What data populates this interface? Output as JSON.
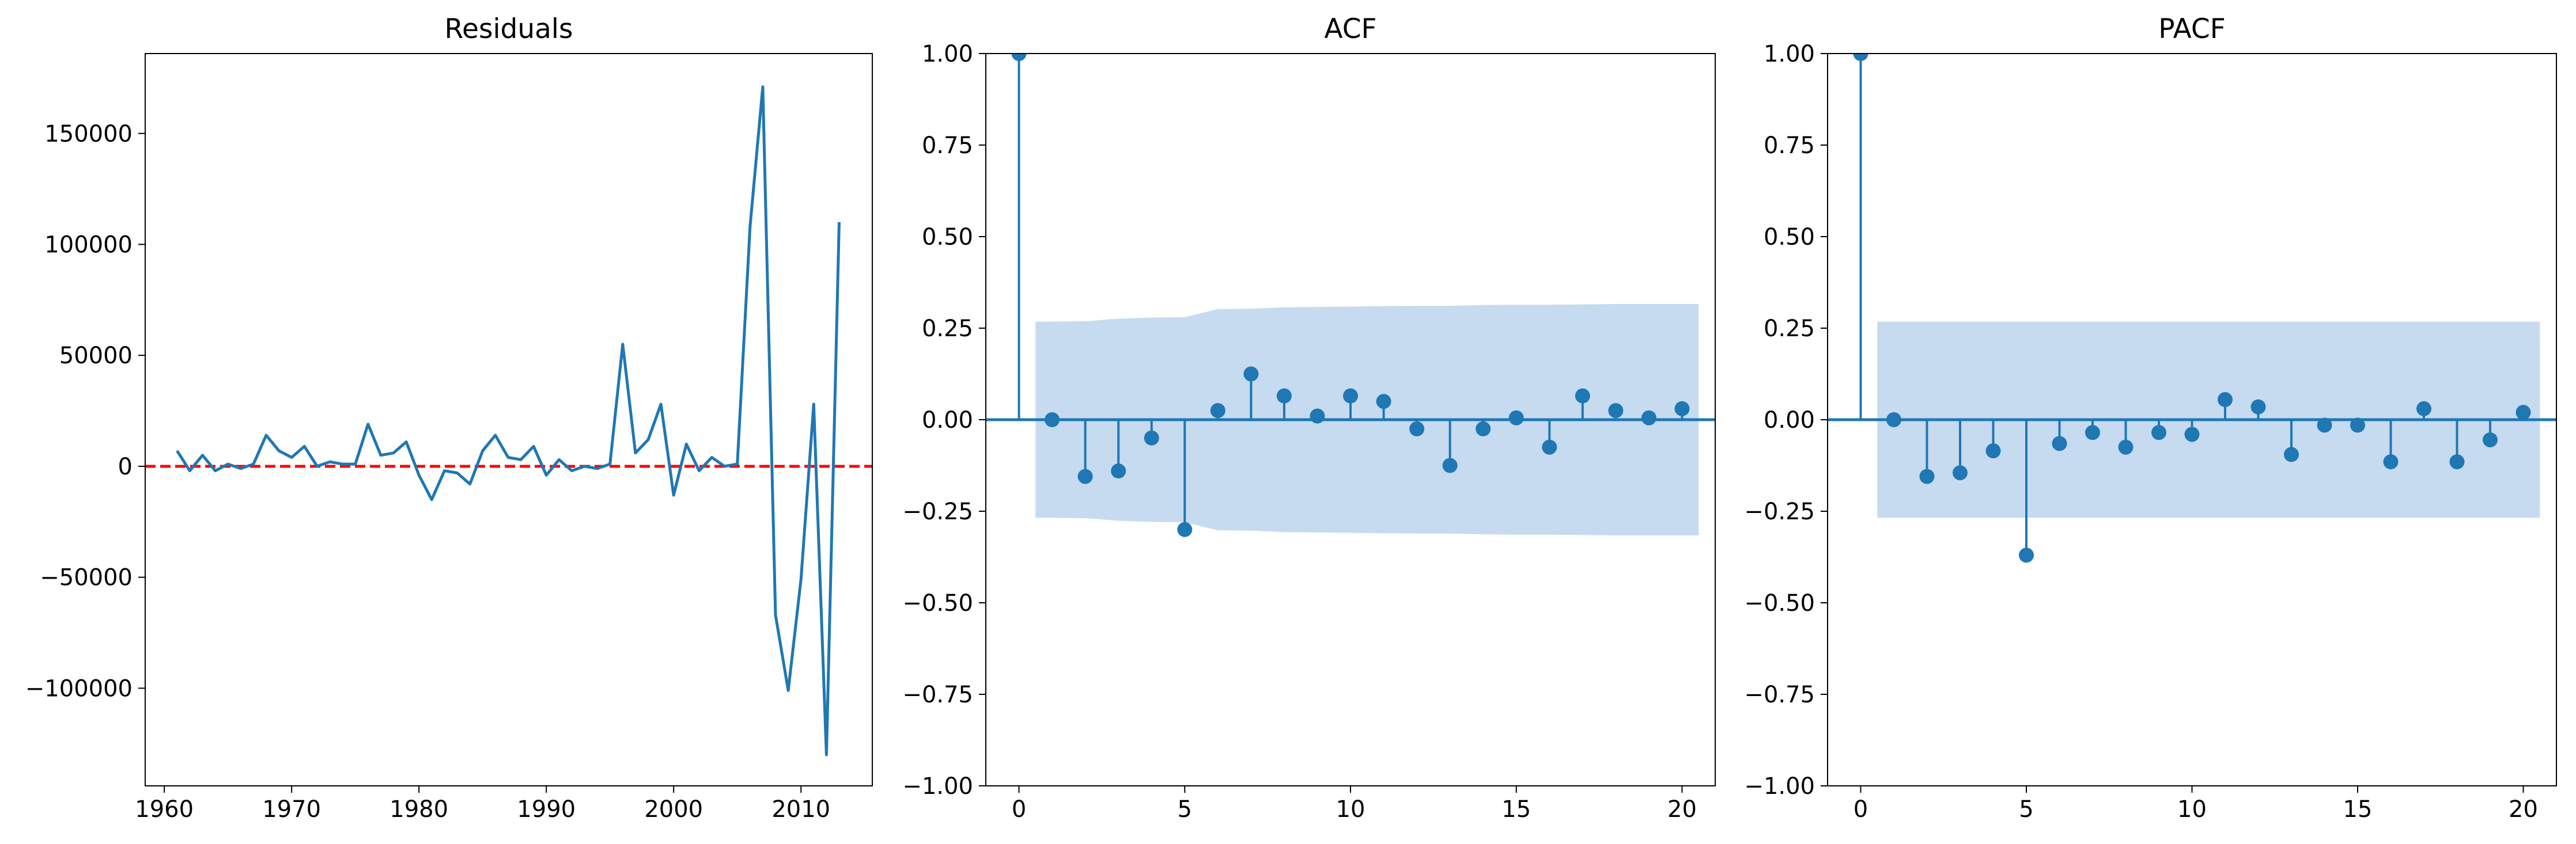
{
  "colors": {
    "series": "#1f77b4",
    "confband": "#c6dbef",
    "zeroline": "#ff0000",
    "axes": "#000000",
    "background": "#ffffff"
  },
  "chart_data": [
    {
      "type": "line",
      "title": "Residuals",
      "xlabel": "",
      "ylabel": "",
      "grid": false,
      "xlim": [
        1958.5,
        2015.6
      ],
      "ylim": [
        -144000,
        186000
      ],
      "xticks": [
        1960,
        1970,
        1980,
        1990,
        2000,
        2010
      ],
      "xtick_labels": [
        "1960",
        "1970",
        "1980",
        "1990",
        "2000",
        "2010"
      ],
      "yticks": [
        -100000,
        -50000,
        0,
        50000,
        100000,
        150000
      ],
      "ytick_labels": [
        "−100000",
        "−50000",
        "0",
        "50000",
        "100000",
        "150000"
      ],
      "reference_line": {
        "y": 0,
        "style": "dashed",
        "color": "#ff0000"
      },
      "x": [
        1961,
        1962,
        1963,
        1964,
        1965,
        1966,
        1967,
        1968,
        1969,
        1970,
        1971,
        1972,
        1973,
        1974,
        1975,
        1976,
        1977,
        1978,
        1979,
        1980,
        1981,
        1982,
        1983,
        1984,
        1985,
        1986,
        1987,
        1988,
        1989,
        1990,
        1991,
        1992,
        1993,
        1994,
        1995,
        1996,
        1997,
        1998,
        1999,
        2000,
        2001,
        2002,
        2003,
        2004,
        2005,
        2006,
        2007,
        2008,
        2009,
        2010,
        2011,
        2012,
        2013
      ],
      "y": [
        7000,
        -2000,
        5000,
        -2000,
        1000,
        -1000,
        1000,
        14000,
        7000,
        4000,
        9000,
        0,
        2000,
        1000,
        1000,
        19000,
        5000,
        6000,
        11000,
        -4000,
        -15000,
        -2000,
        -3000,
        -8000,
        7000,
        14000,
        4000,
        3000,
        9000,
        -4000,
        3000,
        -2000,
        0,
        -1000,
        1000,
        55000,
        6000,
        12000,
        28000,
        -13000,
        10000,
        -2000,
        4000,
        0,
        1000,
        108000,
        171000,
        -67000,
        -101000,
        -51000,
        28000,
        -130000,
        110000
      ]
    },
    {
      "type": "stem",
      "title": "ACF",
      "xlabel": "",
      "ylabel": "",
      "grid": false,
      "xlim": [
        -1,
        21
      ],
      "ylim": [
        -1.0,
        1.0
      ],
      "xticks": [
        0,
        5,
        10,
        15,
        20
      ],
      "xtick_labels": [
        "0",
        "5",
        "10",
        "15",
        "20"
      ],
      "yticks": [
        -1.0,
        -0.75,
        -0.5,
        -0.25,
        0.0,
        0.25,
        0.5,
        0.75,
        1.0
      ],
      "ytick_labels": [
        "−1.00",
        "−0.75",
        "−0.50",
        "−0.25",
        "0.00",
        "0.25",
        "0.50",
        "0.75",
        "1.00"
      ],
      "lags": [
        0,
        1,
        2,
        3,
        4,
        5,
        6,
        7,
        8,
        9,
        10,
        11,
        12,
        13,
        14,
        15,
        16,
        17,
        18,
        19,
        20
      ],
      "values": [
        1.0,
        0.0,
        -0.155,
        -0.14,
        -0.05,
        -0.3,
        0.025,
        0.125,
        0.065,
        0.01,
        0.065,
        0.05,
        -0.025,
        -0.125,
        -0.025,
        0.005,
        -0.075,
        0.065,
        0.025,
        0.005,
        0.03
      ],
      "conf_band": {
        "lags": [
          0.5,
          1,
          2,
          3,
          4,
          5,
          6,
          7,
          8,
          9,
          10,
          11,
          12,
          13,
          14,
          15,
          16,
          17,
          18,
          19,
          20,
          20.5
        ],
        "upper": [
          0.268,
          0.268,
          0.269,
          0.276,
          0.279,
          0.28,
          0.302,
          0.303,
          0.307,
          0.308,
          0.309,
          0.31,
          0.311,
          0.311,
          0.313,
          0.314,
          0.314,
          0.315,
          0.316,
          0.316,
          0.316,
          0.316
        ]
      }
    },
    {
      "type": "stem",
      "title": "PACF",
      "xlabel": "",
      "ylabel": "",
      "grid": false,
      "xlim": [
        -1,
        21
      ],
      "ylim": [
        -1.0,
        1.0
      ],
      "xticks": [
        0,
        5,
        10,
        15,
        20
      ],
      "xtick_labels": [
        "0",
        "5",
        "10",
        "15",
        "20"
      ],
      "yticks": [
        -1.0,
        -0.75,
        -0.5,
        -0.25,
        0.0,
        0.25,
        0.5,
        0.75,
        1.0
      ],
      "ytick_labels": [
        "−1.00",
        "−0.75",
        "−0.50",
        "−0.25",
        "0.00",
        "0.25",
        "0.50",
        "0.75",
        "1.00"
      ],
      "lags": [
        0,
        1,
        2,
        3,
        4,
        5,
        6,
        7,
        8,
        9,
        10,
        11,
        12,
        13,
        14,
        15,
        16,
        17,
        18,
        19,
        20
      ],
      "values": [
        1.0,
        0.0,
        -0.155,
        -0.145,
        -0.085,
        -0.37,
        -0.065,
        -0.035,
        -0.075,
        -0.035,
        -0.04,
        0.055,
        0.035,
        -0.095,
        -0.015,
        -0.015,
        -0.115,
        0.03,
        -0.115,
        -0.055,
        0.02
      ],
      "conf_band": {
        "lags": [
          0.5,
          20.5
        ],
        "upper": [
          0.268,
          0.268
        ]
      }
    }
  ]
}
